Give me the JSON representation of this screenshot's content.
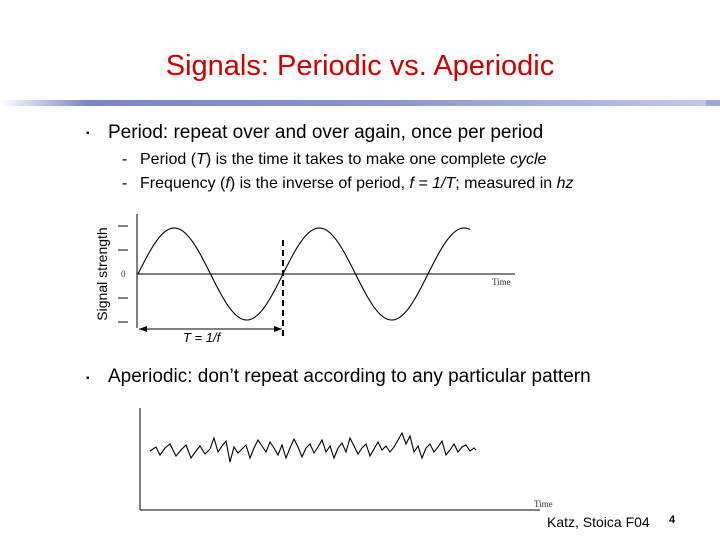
{
  "slide": {
    "title": "Signals: Periodic vs. Aperiodic",
    "bullet1": "Period: repeat over and over again, once per period",
    "sub1": {
      "dash": "-",
      "a": "Period (",
      "b": "T",
      "c": ") is the time it takes to make one complete ",
      "d": "cycle"
    },
    "sub2": {
      "dash": "-",
      "a": "Frequency (",
      "b": "f",
      "c": ") is the inverse of period, ",
      "d": "f = 1/T",
      "e": "; measured in ",
      "f": "hz"
    },
    "bullet2": "Aperiodic: don’t repeat according to any particular pattern",
    "footer": "Katz, Stoica F04",
    "page_number": "4"
  },
  "periodic_plot": {
    "y_label": "Signal strength",
    "x_axis_label": "Time",
    "y_tick_zero": "0",
    "period_label": "T = 1/f"
  },
  "aperiodic_plot": {
    "x_axis_label": "Time"
  },
  "colors": {
    "title": "#cc0000",
    "rule": "#8a96d0"
  }
}
